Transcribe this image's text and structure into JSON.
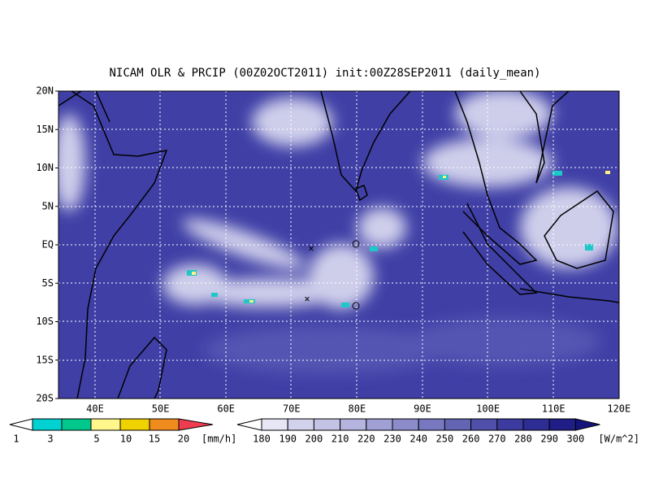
{
  "title": "NICAM OLR & PRCIP (00Z02OCT2011) init:00Z28SEP2011 (daily_mean)",
  "axes": {
    "x_labels": [
      "40E",
      "50E",
      "60E",
      "70E",
      "80E",
      "90E",
      "100E",
      "110E",
      "120E"
    ],
    "y_labels": [
      "20N",
      "15N",
      "10N",
      "5N",
      "EQ",
      "5S",
      "10S",
      "15S",
      "20S"
    ]
  },
  "precip_colorbar": {
    "labels": [
      "1",
      "3",
      "5",
      "10",
      "15",
      "20"
    ],
    "unit": "[mm/h]"
  },
  "olr_colorbar": {
    "labels": [
      "180",
      "190",
      "200",
      "210",
      "220",
      "230",
      "240",
      "250",
      "260",
      "270",
      "280",
      "290",
      "300"
    ],
    "unit": "[W/m^2]"
  }
}
